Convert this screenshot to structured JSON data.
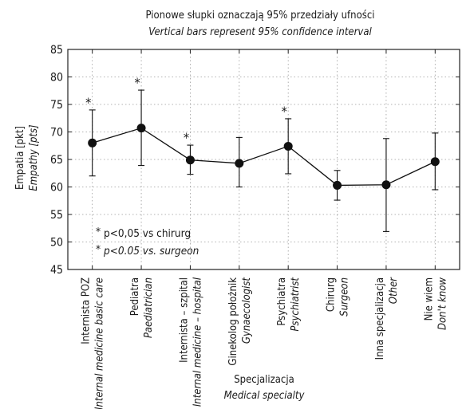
{
  "chart_data": {
    "type": "line",
    "title": "Pionowe słupki oznaczają 95% przedziały ufności",
    "subtitle": "Vertical bars represent 95% confidence interval",
    "ylabel": "Empatia [pkt]",
    "ylabel_en": "Empathy [pts]",
    "xlabel": "Specjalizacja",
    "xlabel_en": "Medical specialty",
    "ylim": [
      45,
      85
    ],
    "yticks": [
      45,
      50,
      55,
      60,
      65,
      70,
      75,
      80,
      85
    ],
    "grid": true,
    "categories": [
      {
        "pl": "Internista POZ",
        "en": "Internal medicine basic care"
      },
      {
        "pl": "Pediatra",
        "en": "Paediatrician"
      },
      {
        "pl": "Internista – szpital",
        "en": "Internal medicine – hospital"
      },
      {
        "pl": "Ginekolog położnik",
        "en": "Gynaecologist"
      },
      {
        "pl": "Psychiatra",
        "en": "Psychiatrist"
      },
      {
        "pl": "Chirurg",
        "en": "Surgeon"
      },
      {
        "pl": "Inna specjalizacja",
        "en": "Other"
      },
      {
        "pl": "Nie wiem",
        "en": "Don't know"
      }
    ],
    "series": [
      {
        "values": [
          68.0,
          70.7,
          64.9,
          64.3,
          67.4,
          60.3,
          60.4,
          64.6
        ],
        "ci_low": [
          62.0,
          63.9,
          62.3,
          60.0,
          62.4,
          57.6,
          51.9,
          59.5
        ],
        "ci_high": [
          74.0,
          77.6,
          67.6,
          69.0,
          72.4,
          63.0,
          68.8,
          69.8
        ],
        "significant": [
          true,
          true,
          true,
          false,
          true,
          false,
          false,
          false
        ]
      }
    ],
    "marker_symbol": "*",
    "annotation": "p<0,05 vs chirurg",
    "annotation_en": "p<0.05 vs. surgeon"
  }
}
